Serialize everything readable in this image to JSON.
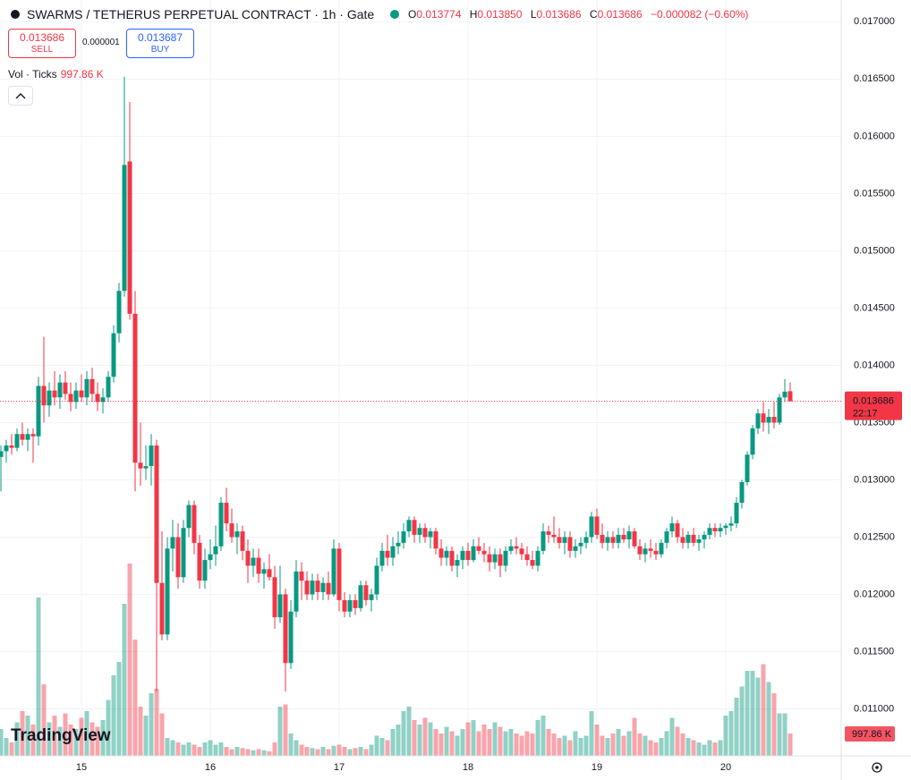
{
  "header": {
    "title": "SWARMS / TETHERUS PERPETUAL CONTRACT · 1h · Gate",
    "legend": [
      {
        "label": "O",
        "value": "0.013774"
      },
      {
        "label": "H",
        "value": "0.013850"
      },
      {
        "label": "L",
        "value": "0.013686"
      },
      {
        "label": "C",
        "value": "0.013686"
      }
    ],
    "change": "−0.000082 (−0.60%)",
    "sell": {
      "price": "0.013686",
      "label": "SELL"
    },
    "spread": "0.000001",
    "buy": {
      "price": "0.013687",
      "label": "BUY"
    },
    "brand": "TradingView"
  },
  "chart_data": {
    "type": "candlestick",
    "categories": [
      null,
      null,
      null,
      null,
      null,
      null,
      null,
      null,
      null,
      null,
      null,
      null,
      null,
      null,
      null,
      "15",
      null,
      null,
      null,
      null,
      null,
      null,
      null,
      null,
      null,
      null,
      null,
      null,
      null,
      null,
      null,
      null,
      null,
      null,
      null,
      null,
      null,
      null,
      null,
      "16",
      null,
      null,
      null,
      null,
      null,
      null,
      null,
      null,
      null,
      null,
      null,
      null,
      null,
      null,
      null,
      null,
      null,
      null,
      null,
      null,
      null,
      null,
      null,
      "17",
      null,
      null,
      null,
      null,
      null,
      null,
      null,
      null,
      null,
      null,
      null,
      null,
      null,
      null,
      null,
      null,
      null,
      null,
      null,
      null,
      null,
      null,
      null,
      "18",
      null,
      null,
      null,
      null,
      null,
      null,
      null,
      null,
      null,
      null,
      null,
      null,
      null,
      null,
      null,
      null,
      null,
      null,
      null,
      null,
      null,
      null,
      null,
      "19",
      null,
      null,
      null,
      null,
      null,
      null,
      null,
      null,
      null,
      null,
      null,
      null,
      null,
      null,
      null,
      null,
      null,
      null,
      null,
      null,
      null,
      null,
      null,
      "20",
      null,
      null,
      null,
      null,
      null,
      null,
      null,
      null,
      null,
      null,
      null,
      null
    ],
    "ohlc": [
      [
        0.0132,
        0.0133,
        0.0129,
        0.01325
      ],
      [
        0.01325,
        0.01335,
        0.01315,
        0.0133
      ],
      [
        0.0133,
        0.0134,
        0.01322,
        0.01328
      ],
      [
        0.01328,
        0.01345,
        0.01325,
        0.0134
      ],
      [
        0.0134,
        0.0135,
        0.0133,
        0.01335
      ],
      [
        0.01335,
        0.01345,
        0.01325,
        0.0134
      ],
      [
        0.0134,
        0.01345,
        0.01315,
        0.01338
      ],
      [
        0.01338,
        0.0139,
        0.0133,
        0.01382
      ],
      [
        0.01382,
        0.01425,
        0.0135,
        0.01365
      ],
      [
        0.01365,
        0.01385,
        0.01355,
        0.01378
      ],
      [
        0.01378,
        0.01395,
        0.01365,
        0.01372
      ],
      [
        0.01372,
        0.01392,
        0.01362,
        0.01385
      ],
      [
        0.01385,
        0.01395,
        0.0137,
        0.01375
      ],
      [
        0.01375,
        0.01385,
        0.0136,
        0.01368
      ],
      [
        0.01368,
        0.01385,
        0.01362,
        0.01378
      ],
      [
        0.01378,
        0.01392,
        0.01368,
        0.01372
      ],
      [
        0.01372,
        0.01395,
        0.01365,
        0.01388
      ],
      [
        0.01388,
        0.01398,
        0.01368,
        0.01375
      ],
      [
        0.01375,
        0.01385,
        0.0136,
        0.01368
      ],
      [
        0.01368,
        0.0138,
        0.01358,
        0.01372
      ],
      [
        0.01372,
        0.01395,
        0.01368,
        0.0139
      ],
      [
        0.0139,
        0.01435,
        0.01385,
        0.01428
      ],
      [
        0.01428,
        0.01472,
        0.0142,
        0.01465
      ],
      [
        0.01465,
        0.01652,
        0.0146,
        0.01575
      ],
      [
        0.01578,
        0.0163,
        0.0144,
        0.01445
      ],
      [
        0.01445,
        0.01465,
        0.0129,
        0.01315
      ],
      [
        0.01315,
        0.0135,
        0.01295,
        0.0131
      ],
      [
        0.0131,
        0.0133,
        0.013,
        0.01312
      ],
      [
        0.01312,
        0.0134,
        0.01295,
        0.0133
      ],
      [
        0.0133,
        0.01335,
        0.01115,
        0.0121
      ],
      [
        0.0121,
        0.01255,
        0.0116,
        0.01165
      ],
      [
        0.01165,
        0.0125,
        0.0116,
        0.0124
      ],
      [
        0.0124,
        0.01265,
        0.0122,
        0.0125
      ],
      [
        0.0125,
        0.01262,
        0.01205,
        0.01215
      ],
      [
        0.01215,
        0.01265,
        0.0121,
        0.01258
      ],
      [
        0.01258,
        0.01282,
        0.0125,
        0.01278
      ],
      [
        0.01278,
        0.01282,
        0.01235,
        0.01245
      ],
      [
        0.01245,
        0.01252,
        0.01205,
        0.01212
      ],
      [
        0.01212,
        0.0124,
        0.01205,
        0.0123
      ],
      [
        0.0123,
        0.01248,
        0.01222,
        0.01235
      ],
      [
        0.01235,
        0.0126,
        0.01225,
        0.01242
      ],
      [
        0.01242,
        0.01285,
        0.01238,
        0.0128
      ],
      [
        0.0128,
        0.01293,
        0.01255,
        0.01262
      ],
      [
        0.01262,
        0.01275,
        0.01245,
        0.0125
      ],
      [
        0.0125,
        0.01262,
        0.01235,
        0.01255
      ],
      [
        0.01255,
        0.0126,
        0.0123,
        0.01238
      ],
      [
        0.01238,
        0.01248,
        0.0121,
        0.01225
      ],
      [
        0.01225,
        0.0124,
        0.01215,
        0.01232
      ],
      [
        0.01232,
        0.0124,
        0.0121,
        0.01218
      ],
      [
        0.01218,
        0.01228,
        0.01205,
        0.01222
      ],
      [
        0.01222,
        0.01235,
        0.01212,
        0.01215
      ],
      [
        0.01215,
        0.01225,
        0.0117,
        0.0118
      ],
      [
        0.0118,
        0.01225,
        0.01175,
        0.012
      ],
      [
        0.012,
        0.01205,
        0.01115,
        0.0114
      ],
      [
        0.0114,
        0.01195,
        0.01135,
        0.01185
      ],
      [
        0.01185,
        0.0123,
        0.0118,
        0.0122
      ],
      [
        0.0122,
        0.01228,
        0.01195,
        0.01212
      ],
      [
        0.01212,
        0.0122,
        0.01195,
        0.012
      ],
      [
        0.012,
        0.01218,
        0.01195,
        0.01212
      ],
      [
        0.01212,
        0.01218,
        0.01195,
        0.01202
      ],
      [
        0.01202,
        0.01215,
        0.01195,
        0.0121
      ],
      [
        0.0121,
        0.0122,
        0.01195,
        0.012
      ],
      [
        0.012,
        0.01248,
        0.01198,
        0.0124
      ],
      [
        0.0124,
        0.01245,
        0.01185,
        0.01195
      ],
      [
        0.01195,
        0.01202,
        0.0118,
        0.01185
      ],
      [
        0.01185,
        0.012,
        0.0118,
        0.01195
      ],
      [
        0.01195,
        0.012,
        0.01182,
        0.01188
      ],
      [
        0.01188,
        0.01212,
        0.01185,
        0.01208
      ],
      [
        0.01208,
        0.01212,
        0.0119,
        0.01195
      ],
      [
        0.01195,
        0.01205,
        0.01185,
        0.012
      ],
      [
        0.012,
        0.01232,
        0.01195,
        0.01225
      ],
      [
        0.01225,
        0.01245,
        0.0122,
        0.01238
      ],
      [
        0.01238,
        0.01252,
        0.01225,
        0.01232
      ],
      [
        0.01232,
        0.0125,
        0.01225,
        0.01242
      ],
      [
        0.01242,
        0.01255,
        0.01235,
        0.01245
      ],
      [
        0.01245,
        0.01262,
        0.0124,
        0.01255
      ],
      [
        0.01255,
        0.01268,
        0.0125,
        0.01265
      ],
      [
        0.01265,
        0.01268,
        0.01245,
        0.01252
      ],
      [
        0.01252,
        0.01262,
        0.01245,
        0.01258
      ],
      [
        0.01258,
        0.01262,
        0.01245,
        0.0125
      ],
      [
        0.0125,
        0.01258,
        0.0124,
        0.01255
      ],
      [
        0.01255,
        0.01258,
        0.01235,
        0.0124
      ],
      [
        0.0124,
        0.01248,
        0.01225,
        0.01232
      ],
      [
        0.01232,
        0.01242,
        0.01225,
        0.01238
      ],
      [
        0.01238,
        0.01242,
        0.0122,
        0.01225
      ],
      [
        0.01225,
        0.01235,
        0.01215,
        0.0123
      ],
      [
        0.0123,
        0.01242,
        0.01222,
        0.01238
      ],
      [
        0.01238,
        0.01245,
        0.01225,
        0.0123
      ],
      [
        0.0123,
        0.01248,
        0.01228,
        0.01242
      ],
      [
        0.01242,
        0.0125,
        0.01235,
        0.01238
      ],
      [
        0.01238,
        0.01245,
        0.01228,
        0.01235
      ],
      [
        0.01235,
        0.01242,
        0.0122,
        0.01228
      ],
      [
        0.01228,
        0.0124,
        0.01222,
        0.01235
      ],
      [
        0.01235,
        0.0124,
        0.01215,
        0.01225
      ],
      [
        0.01225,
        0.01242,
        0.0122,
        0.01238
      ],
      [
        0.01238,
        0.01248,
        0.01235,
        0.01242
      ],
      [
        0.01242,
        0.0125,
        0.01235,
        0.0124
      ],
      [
        0.0124,
        0.01245,
        0.0123,
        0.01235
      ],
      [
        0.01235,
        0.01242,
        0.01225,
        0.0123
      ],
      [
        0.0123,
        0.01238,
        0.01222,
        0.01225
      ],
      [
        0.01225,
        0.01242,
        0.0122,
        0.01238
      ],
      [
        0.01238,
        0.01262,
        0.01235,
        0.01255
      ],
      [
        0.01255,
        0.0126,
        0.01245,
        0.01252
      ],
      [
        0.01252,
        0.01268,
        0.01245,
        0.0125
      ],
      [
        0.0125,
        0.01258,
        0.0124,
        0.01245
      ],
      [
        0.01245,
        0.01255,
        0.01235,
        0.0125
      ],
      [
        0.0125,
        0.01255,
        0.01232,
        0.01238
      ],
      [
        0.01238,
        0.01248,
        0.01232,
        0.01242
      ],
      [
        0.01242,
        0.0125,
        0.01235,
        0.01245
      ],
      [
        0.01245,
        0.01255,
        0.0124,
        0.0125
      ],
      [
        0.0125,
        0.01272,
        0.01245,
        0.01268
      ],
      [
        0.01268,
        0.01275,
        0.01248,
        0.01252
      ],
      [
        0.01252,
        0.01262,
        0.0124,
        0.01245
      ],
      [
        0.01245,
        0.01255,
        0.01238,
        0.0125
      ],
      [
        0.0125,
        0.01255,
        0.0124,
        0.01245
      ],
      [
        0.01245,
        0.01258,
        0.0124,
        0.01252
      ],
      [
        0.01252,
        0.01258,
        0.01245,
        0.01248
      ],
      [
        0.01248,
        0.0126,
        0.0124,
        0.01255
      ],
      [
        0.01255,
        0.01258,
        0.0124,
        0.01242
      ],
      [
        0.01242,
        0.01248,
        0.0123,
        0.01235
      ],
      [
        0.01235,
        0.01245,
        0.01228,
        0.0124
      ],
      [
        0.0124,
        0.01248,
        0.01232,
        0.01238
      ],
      [
        0.01238,
        0.01245,
        0.0123,
        0.01235
      ],
      [
        0.01235,
        0.01248,
        0.01232,
        0.01245
      ],
      [
        0.01245,
        0.01258,
        0.0124,
        0.01255
      ],
      [
        0.01255,
        0.01268,
        0.0125,
        0.01262
      ],
      [
        0.01262,
        0.01265,
        0.01245,
        0.0125
      ],
      [
        0.0125,
        0.01258,
        0.0124,
        0.01245
      ],
      [
        0.01245,
        0.01255,
        0.0124,
        0.01252
      ],
      [
        0.01252,
        0.01258,
        0.01242,
        0.01245
      ],
      [
        0.01245,
        0.01252,
        0.01238,
        0.01248
      ],
      [
        0.01248,
        0.01255,
        0.0124,
        0.01252
      ],
      [
        0.01252,
        0.01262,
        0.01248,
        0.01258
      ],
      [
        0.01258,
        0.01262,
        0.0125,
        0.01255
      ],
      [
        0.01255,
        0.01262,
        0.0125,
        0.01258
      ],
      [
        0.01258,
        0.01262,
        0.01252,
        0.0126
      ],
      [
        0.0126,
        0.01268,
        0.01255,
        0.01262
      ],
      [
        0.01262,
        0.01285,
        0.01258,
        0.0128
      ],
      [
        0.0128,
        0.013,
        0.01275,
        0.01298
      ],
      [
        0.01298,
        0.01325,
        0.01295,
        0.01322
      ],
      [
        0.01322,
        0.01348,
        0.01318,
        0.01345
      ],
      [
        0.01345,
        0.01362,
        0.0134,
        0.01358
      ],
      [
        0.01358,
        0.01368,
        0.01342,
        0.0135
      ],
      [
        0.0135,
        0.01362,
        0.0134,
        0.01355
      ],
      [
        0.01355,
        0.01368,
        0.01345,
        0.0135
      ],
      [
        0.0135,
        0.01375,
        0.01348,
        0.01372
      ],
      [
        0.01372,
        0.01388,
        0.01368,
        0.01377
      ],
      [
        0.013774,
        0.01385,
        0.013686,
        0.013686
      ]
    ],
    "up_color": "#089981",
    "down_color": "#f23645",
    "volume": {
      "name": "Vol · Ticks",
      "last_value_label": "997.86 K",
      "values": [
        1200,
        800,
        600,
        1500,
        2000,
        1800,
        1400,
        7080,
        3200,
        1500,
        1800,
        1300,
        1900,
        1400,
        1200,
        1700,
        2000,
        1500,
        1300,
        1600,
        2500,
        3600,
        4200,
        6800,
        8600,
        5200,
        2200,
        1800,
        2800,
        3000,
        1900,
        800,
        700,
        600,
        500,
        600,
        500,
        400,
        600,
        700,
        500,
        600,
        400,
        300,
        400,
        350,
        300,
        250,
        300,
        250,
        200,
        600,
        2200,
        2300,
        1000,
        700,
        500,
        400,
        350,
        300,
        400,
        300,
        450,
        500,
        400,
        300,
        350,
        400,
        300,
        500,
        900,
        800,
        700,
        1200,
        1400,
        2000,
        2200,
        1600,
        1400,
        1700,
        1500,
        1200,
        1000,
        1300,
        1100,
        900,
        1200,
        1500,
        1600,
        1100,
        1400,
        1200,
        1500,
        1300,
        1100,
        1200,
        1000,
        900,
        1100,
        1000,
        1600,
        1800,
        1200,
        1000,
        800,
        900,
        700,
        1100,
        800,
        900,
        2000,
        1400,
        900,
        800,
        1000,
        1200,
        900,
        1100,
        1700,
        1000,
        900,
        700,
        600,
        800,
        1100,
        1700,
        1300,
        1000,
        800,
        700,
        600,
        500,
        700,
        600,
        700,
        1800,
        2000,
        2600,
        3100,
        3800,
        3800,
        3500,
        4100,
        3300,
        2800,
        1900,
        1900,
        997.86
      ]
    },
    "last_price": {
      "value": 0.013686,
      "label": "0.013686",
      "countdown": "22:17"
    },
    "ylim": [
      0.01059,
      0.01719
    ],
    "yticks": [
      {
        "value": 0.011,
        "label": "0.011000"
      },
      {
        "value": 0.0115,
        "label": "0.011500"
      },
      {
        "value": 0.012,
        "label": "0.012000"
      },
      {
        "value": 0.0125,
        "label": "0.012500"
      },
      {
        "value": 0.013,
        "label": "0.013000"
      },
      {
        "value": 0.0135,
        "label": "0.013500"
      },
      {
        "value": 0.014,
        "label": "0.014000"
      },
      {
        "value": 0.0145,
        "label": "0.014500"
      },
      {
        "value": 0.015,
        "label": "0.015000"
      },
      {
        "value": 0.0155,
        "label": "0.015500"
      },
      {
        "value": 0.016,
        "label": "0.016000"
      },
      {
        "value": 0.0165,
        "label": "0.016500"
      },
      {
        "value": 0.017,
        "label": "0.017000"
      }
    ],
    "grid": true
  }
}
